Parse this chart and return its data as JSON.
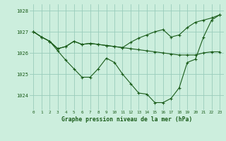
{
  "title": "Graphe pression niveau de la mer (hPa)",
  "bg_color": "#cceedd",
  "grid_color": "#99ccbb",
  "line_color": "#1a5c1a",
  "xlim": [
    -0.5,
    23.5
  ],
  "ylim": [
    1023.3,
    1028.3
  ],
  "yticks": [
    1024,
    1025,
    1026,
    1027,
    1028
  ],
  "xticks": [
    0,
    1,
    2,
    3,
    4,
    5,
    6,
    7,
    8,
    9,
    10,
    11,
    12,
    13,
    14,
    15,
    16,
    17,
    18,
    19,
    20,
    21,
    22,
    23
  ],
  "line1_x": [
    0,
    1,
    2,
    3,
    4,
    5,
    6,
    7,
    8,
    9,
    10,
    11,
    12,
    13,
    14,
    15,
    16,
    17,
    18,
    19,
    20,
    21,
    22,
    23
  ],
  "line1_y": [
    1027.0,
    1026.75,
    1026.55,
    1026.2,
    1026.3,
    1026.55,
    1026.4,
    1026.45,
    1026.4,
    1026.35,
    1026.3,
    1026.25,
    1026.2,
    1026.15,
    1026.1,
    1026.05,
    1026.0,
    1025.95,
    1025.9,
    1025.9,
    1025.9,
    1026.0,
    1026.05,
    1026.05
  ],
  "line2_x": [
    0,
    1,
    2,
    3,
    4,
    5,
    6,
    7,
    8,
    9,
    10,
    11,
    12,
    13,
    14,
    15,
    16,
    17,
    18,
    19,
    20,
    21,
    22,
    23
  ],
  "line2_y": [
    1027.0,
    1026.75,
    1026.55,
    1026.2,
    1026.3,
    1026.55,
    1026.4,
    1026.45,
    1026.4,
    1026.35,
    1026.3,
    1026.25,
    1026.5,
    1026.7,
    1026.85,
    1027.0,
    1027.1,
    1026.75,
    1026.85,
    1027.2,
    1027.45,
    1027.55,
    1027.65,
    1027.8
  ],
  "line3_x": [
    0,
    1,
    2,
    3,
    4,
    5,
    6,
    7,
    8,
    9,
    10,
    11,
    12,
    13,
    14,
    15,
    16,
    17,
    18,
    19,
    20,
    21,
    22,
    23
  ],
  "line3_y": [
    1027.0,
    1026.75,
    1026.55,
    1026.1,
    1025.65,
    1025.25,
    1024.85,
    1024.85,
    1025.25,
    1025.75,
    1025.55,
    1025.0,
    1024.55,
    1024.1,
    1024.05,
    1023.65,
    1023.65,
    1023.85,
    1024.35,
    1025.55,
    1025.7,
    1026.75,
    1027.55,
    1027.8
  ]
}
